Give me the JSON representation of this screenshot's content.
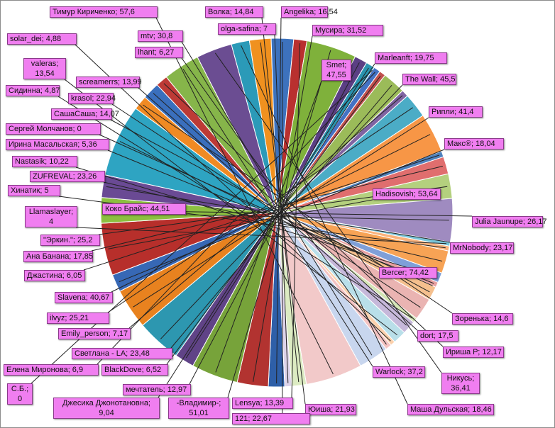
{
  "chart_data": {
    "type": "pie",
    "title": "",
    "slices": [
      {
        "label": "Angelika; 16,54",
        "value": 16.54,
        "color": "#2e5fa8"
      },
      {
        "label": "Мусира; 31,52",
        "value": 31.52,
        "color": "#b23330"
      },
      {
        "label": "Smet; 47,55",
        "value": 47.55,
        "color": "#77a33a"
      },
      {
        "label": "Marleanft; 19,75",
        "value": 19.75,
        "color": "#604387"
      },
      {
        "label": "The Wall; 45,5",
        "value": 45.5,
        "color": "#2d97b0"
      },
      {
        "label": "Рипли; 41,4",
        "value": 41.4,
        "color": "#e8821f"
      },
      {
        "label": "Макс®; 18,04",
        "value": 18.04,
        "color": "#3768b5"
      },
      {
        "label": "Hadisovish; 53,64",
        "value": 53.64,
        "color": "#b72f2b"
      },
      {
        "label": "Julia Jaunupe; 26,17",
        "value": 26.17,
        "color": "#8cbf40"
      },
      {
        "label": "MrNobody; 23,17",
        "value": 23.17,
        "color": "#6a4a94"
      },
      {
        "label": "Bercer; 74,42",
        "value": 74.42,
        "color": "#2ea4c2"
      },
      {
        "label": "Зоренька; 14,6",
        "value": 14.6,
        "color": "#f08a24"
      },
      {
        "label": "dort; 17,5",
        "value": 17.5,
        "color": "#3a6fbd"
      },
      {
        "label": "Ириша Р; 12,17",
        "value": 12.17,
        "color": "#bd3a36"
      },
      {
        "label": "Warlock; 37,2",
        "value": 37.2,
        "color": "#86b54a"
      },
      {
        "label": "Никусь; 36,41",
        "value": 36.41,
        "color": "#6b4d92"
      },
      {
        "label": "Маша Дульская; 18,46",
        "value": 18.46,
        "color": "#2b9ab8"
      },
      {
        "label": "Юиша; 21,93",
        "value": 21.93,
        "color": "#f0911f"
      },
      {
        "label": "121; 22,67",
        "value": 22.67,
        "color": "#3d72bd"
      },
      {
        "label": "Lensya; 13,39",
        "value": 13.39,
        "color": "#b9302f"
      },
      {
        "label": "-Владимир-; 51,01",
        "value": 51.01,
        "color": "#7fb13b"
      },
      {
        "label": "мечтатель; 12,97",
        "value": 12.97,
        "color": "#5b3f84"
      },
      {
        "label": "Джесика Джонотановна; 9,04",
        "value": 9.04,
        "color": "#2a94b0"
      },
      {
        "label": "С.Б.; 0",
        "value": 0,
        "color": "#e98320"
      },
      {
        "label": "Елена Миронова; 6,9",
        "value": 6.9,
        "color": "#4472c4"
      },
      {
        "label": "BlackDove; 6,52",
        "value": 6.52,
        "color": "#c0504d"
      },
      {
        "label": "Светлана - LA; 23,48",
        "value": 23.48,
        "color": "#9bbb59"
      },
      {
        "label": "Emily_person; 7,17",
        "value": 7.17,
        "color": "#8064a2"
      },
      {
        "label": "ilvyz; 25,21",
        "value": 25.21,
        "color": "#4bacc6"
      },
      {
        "label": "Slavena; 40,67",
        "value": 40.67,
        "color": "#f79646"
      },
      {
        "label": "Джастина; 6,05",
        "value": 6.05,
        "color": "#4f81bd"
      },
      {
        "label": "Ана Банана; 17,85",
        "value": 17.85,
        "color": "#e06e6e"
      },
      {
        "label": "\"Эркин.\"; 25,2",
        "value": 25.2,
        "color": "#b4d07e"
      },
      {
        "label": "Коко Брайс; 44,51",
        "value": 44.51,
        "color": "#9f8bc0"
      },
      {
        "label": "Llamaslayer; 4",
        "value": 4,
        "color": "#78c4d8"
      },
      {
        "label": "Хинатик; 5",
        "value": 5,
        "color": "#f9b27c"
      },
      {
        "label": "ZUFREVAL; 23,26",
        "value": 23.26,
        "color": "#f7a355"
      },
      {
        "label": "Nastasik; 10,22",
        "value": 10.22,
        "color": "#7f9fd8"
      },
      {
        "label": "Ирина Масальская; 5,36",
        "value": 5.36,
        "color": "#e8a0a0"
      },
      {
        "label": "Сергей Молчанов; 0",
        "value": 0,
        "color": "#c6dc9c"
      },
      {
        "label": "СашаСаша; 14,07",
        "value": 14.07,
        "color": "#f5c08e"
      },
      {
        "label": "krasol; 22,94",
        "value": 22.94,
        "color": "#eab4b2"
      },
      {
        "label": "Сидинна; 4,87",
        "value": 4.87,
        "color": "#d3e4b4"
      },
      {
        "label": "screamerrs; 13,99",
        "value": 13.99,
        "color": "#c6b8da"
      },
      {
        "label": "valeras; 13,54",
        "value": 13.54,
        "color": "#b9dfe9"
      },
      {
        "label": "solar_dei; 4,88",
        "value": 4.88,
        "color": "#fbd1ad"
      },
      {
        "label": "lhant; 6,27",
        "value": 6.27,
        "color": "#f4c3c2"
      },
      {
        "label": "mtv; 30,8",
        "value": 30.8,
        "color": "#c8d6ee"
      },
      {
        "label": "Тимур Кириченко; 57,6",
        "value": 57.6,
        "color": "#f2c9c9"
      },
      {
        "label": "Волка; 14,84",
        "value": 14.84,
        "color": "#dcebc2"
      },
      {
        "label": "olga-safina; 7",
        "value": 7,
        "color": "#ddd3ea"
      }
    ]
  }
}
